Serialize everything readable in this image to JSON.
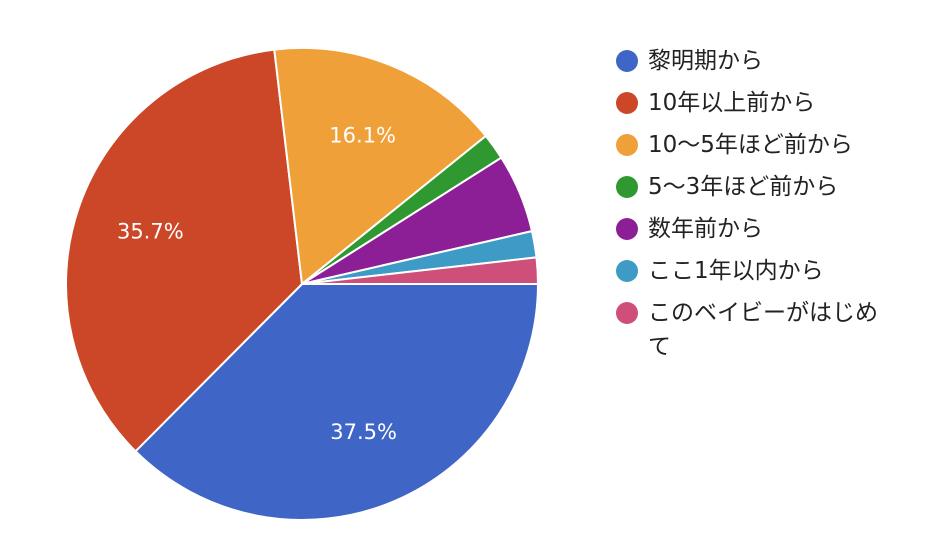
{
  "chart_data": {
    "type": "pie",
    "categories": [
      "黎明期から",
      "10年以上前から",
      "10〜5年ほど前から",
      "5〜3年ほど前から",
      "数年前から",
      "ここ1年以内から",
      "このベイビーがはじめて"
    ],
    "values": [
      37.5,
      35.7,
      16.1,
      1.8,
      5.4,
      1.8,
      1.8
    ],
    "colors": [
      "#3f66c6",
      "#cb4727",
      "#f0a038",
      "#2f9831",
      "#8c1f96",
      "#3e9bc5",
      "#cf4f7b"
    ],
    "data_labels": [
      "37.5%",
      "35.7%",
      "16.1%",
      "",
      "",
      "",
      ""
    ],
    "legend_position": "right",
    "start_angle": "3 o'clock",
    "direction": "clockwise"
  }
}
